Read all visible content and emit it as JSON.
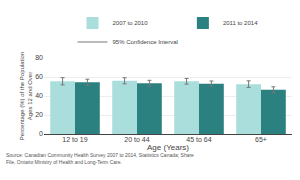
{
  "chart_data": {
    "type": "bar",
    "categories": [
      "12 to 19",
      "20 to 44",
      "45 to 64",
      "65+"
    ],
    "series": [
      {
        "name": "2007 to 2010",
        "color": "#aadedd",
        "values": [
          55.5,
          56.0,
          55.5,
          52.5
        ],
        "errors": [
          3.8,
          3.2,
          3.0,
          3.5
        ]
      },
      {
        "name": "2011 to 2014",
        "color": "#2b8080",
        "values": [
          54.5,
          53.5,
          53.0,
          46.5
        ],
        "errors": [
          3.2,
          3.0,
          2.8,
          3.2
        ]
      }
    ],
    "error_bars": {
      "name": "95% Confidence Interval",
      "color": "#777777"
    },
    "xlabel": "Age (Years)",
    "ylabel": "Percentage (%) of the Population\nAges 12 and Over",
    "annotations": [
      "Source: Canadian Community Health Survey 2007 to 2014, Statistics Canada; Share File, Ontario Ministry of Health and Long-Term Care."
    ],
    "ylim": [
      0,
      80
    ],
    "yticks": [
      0,
      20,
      40,
      60,
      80
    ],
    "grid": true,
    "legend": "top"
  }
}
